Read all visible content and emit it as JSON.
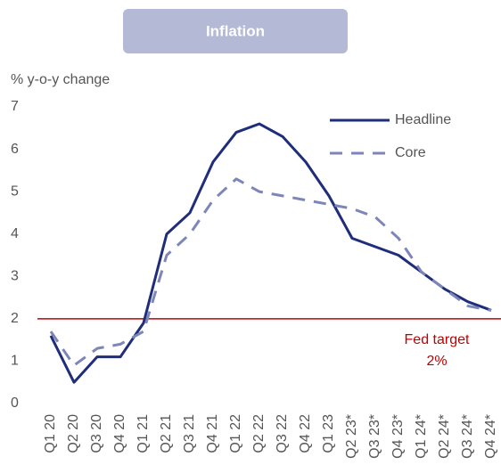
{
  "chart_data": {
    "type": "line",
    "title": "Inflation",
    "y_label": "% y-o-y change",
    "categories": [
      "Q1 20",
      "Q2 20",
      "Q3 20",
      "Q4 20",
      "Q1 21",
      "Q2 21",
      "Q3 21",
      "Q4 21",
      "Q1 22",
      "Q2 22",
      "Q3 22",
      "Q4 22",
      "Q1 23",
      "Q2 23*",
      "Q3 23*",
      "Q4 23*",
      "Q1 24*",
      "Q2 24*",
      "Q3 24*",
      "Q4 24*"
    ],
    "series": [
      {
        "name": "Headline",
        "color": "#1f2d7b",
        "dash": false,
        "values": [
          1.6,
          0.5,
          1.1,
          1.1,
          1.9,
          4.0,
          4.5,
          5.7,
          6.4,
          6.6,
          6.3,
          5.7,
          4.9,
          3.9,
          3.7,
          3.5,
          3.1,
          2.7,
          2.4,
          2.2
        ]
      },
      {
        "name": "Core",
        "color": "#7d86b8",
        "dash": true,
        "values": [
          1.7,
          0.9,
          1.3,
          1.4,
          1.7,
          3.5,
          4.0,
          4.8,
          5.3,
          5.0,
          4.9,
          4.8,
          4.7,
          4.6,
          4.4,
          3.9,
          3.1,
          2.7,
          2.3,
          2.2
        ]
      }
    ],
    "reference_line": {
      "value": 2,
      "color": "#c00000",
      "label_lines": [
        "Fed target",
        "2%"
      ]
    },
    "ylim": [
      0,
      7
    ],
    "yticks": [
      0,
      1,
      2,
      3,
      4,
      5,
      6,
      7
    ],
    "grid": false
  }
}
